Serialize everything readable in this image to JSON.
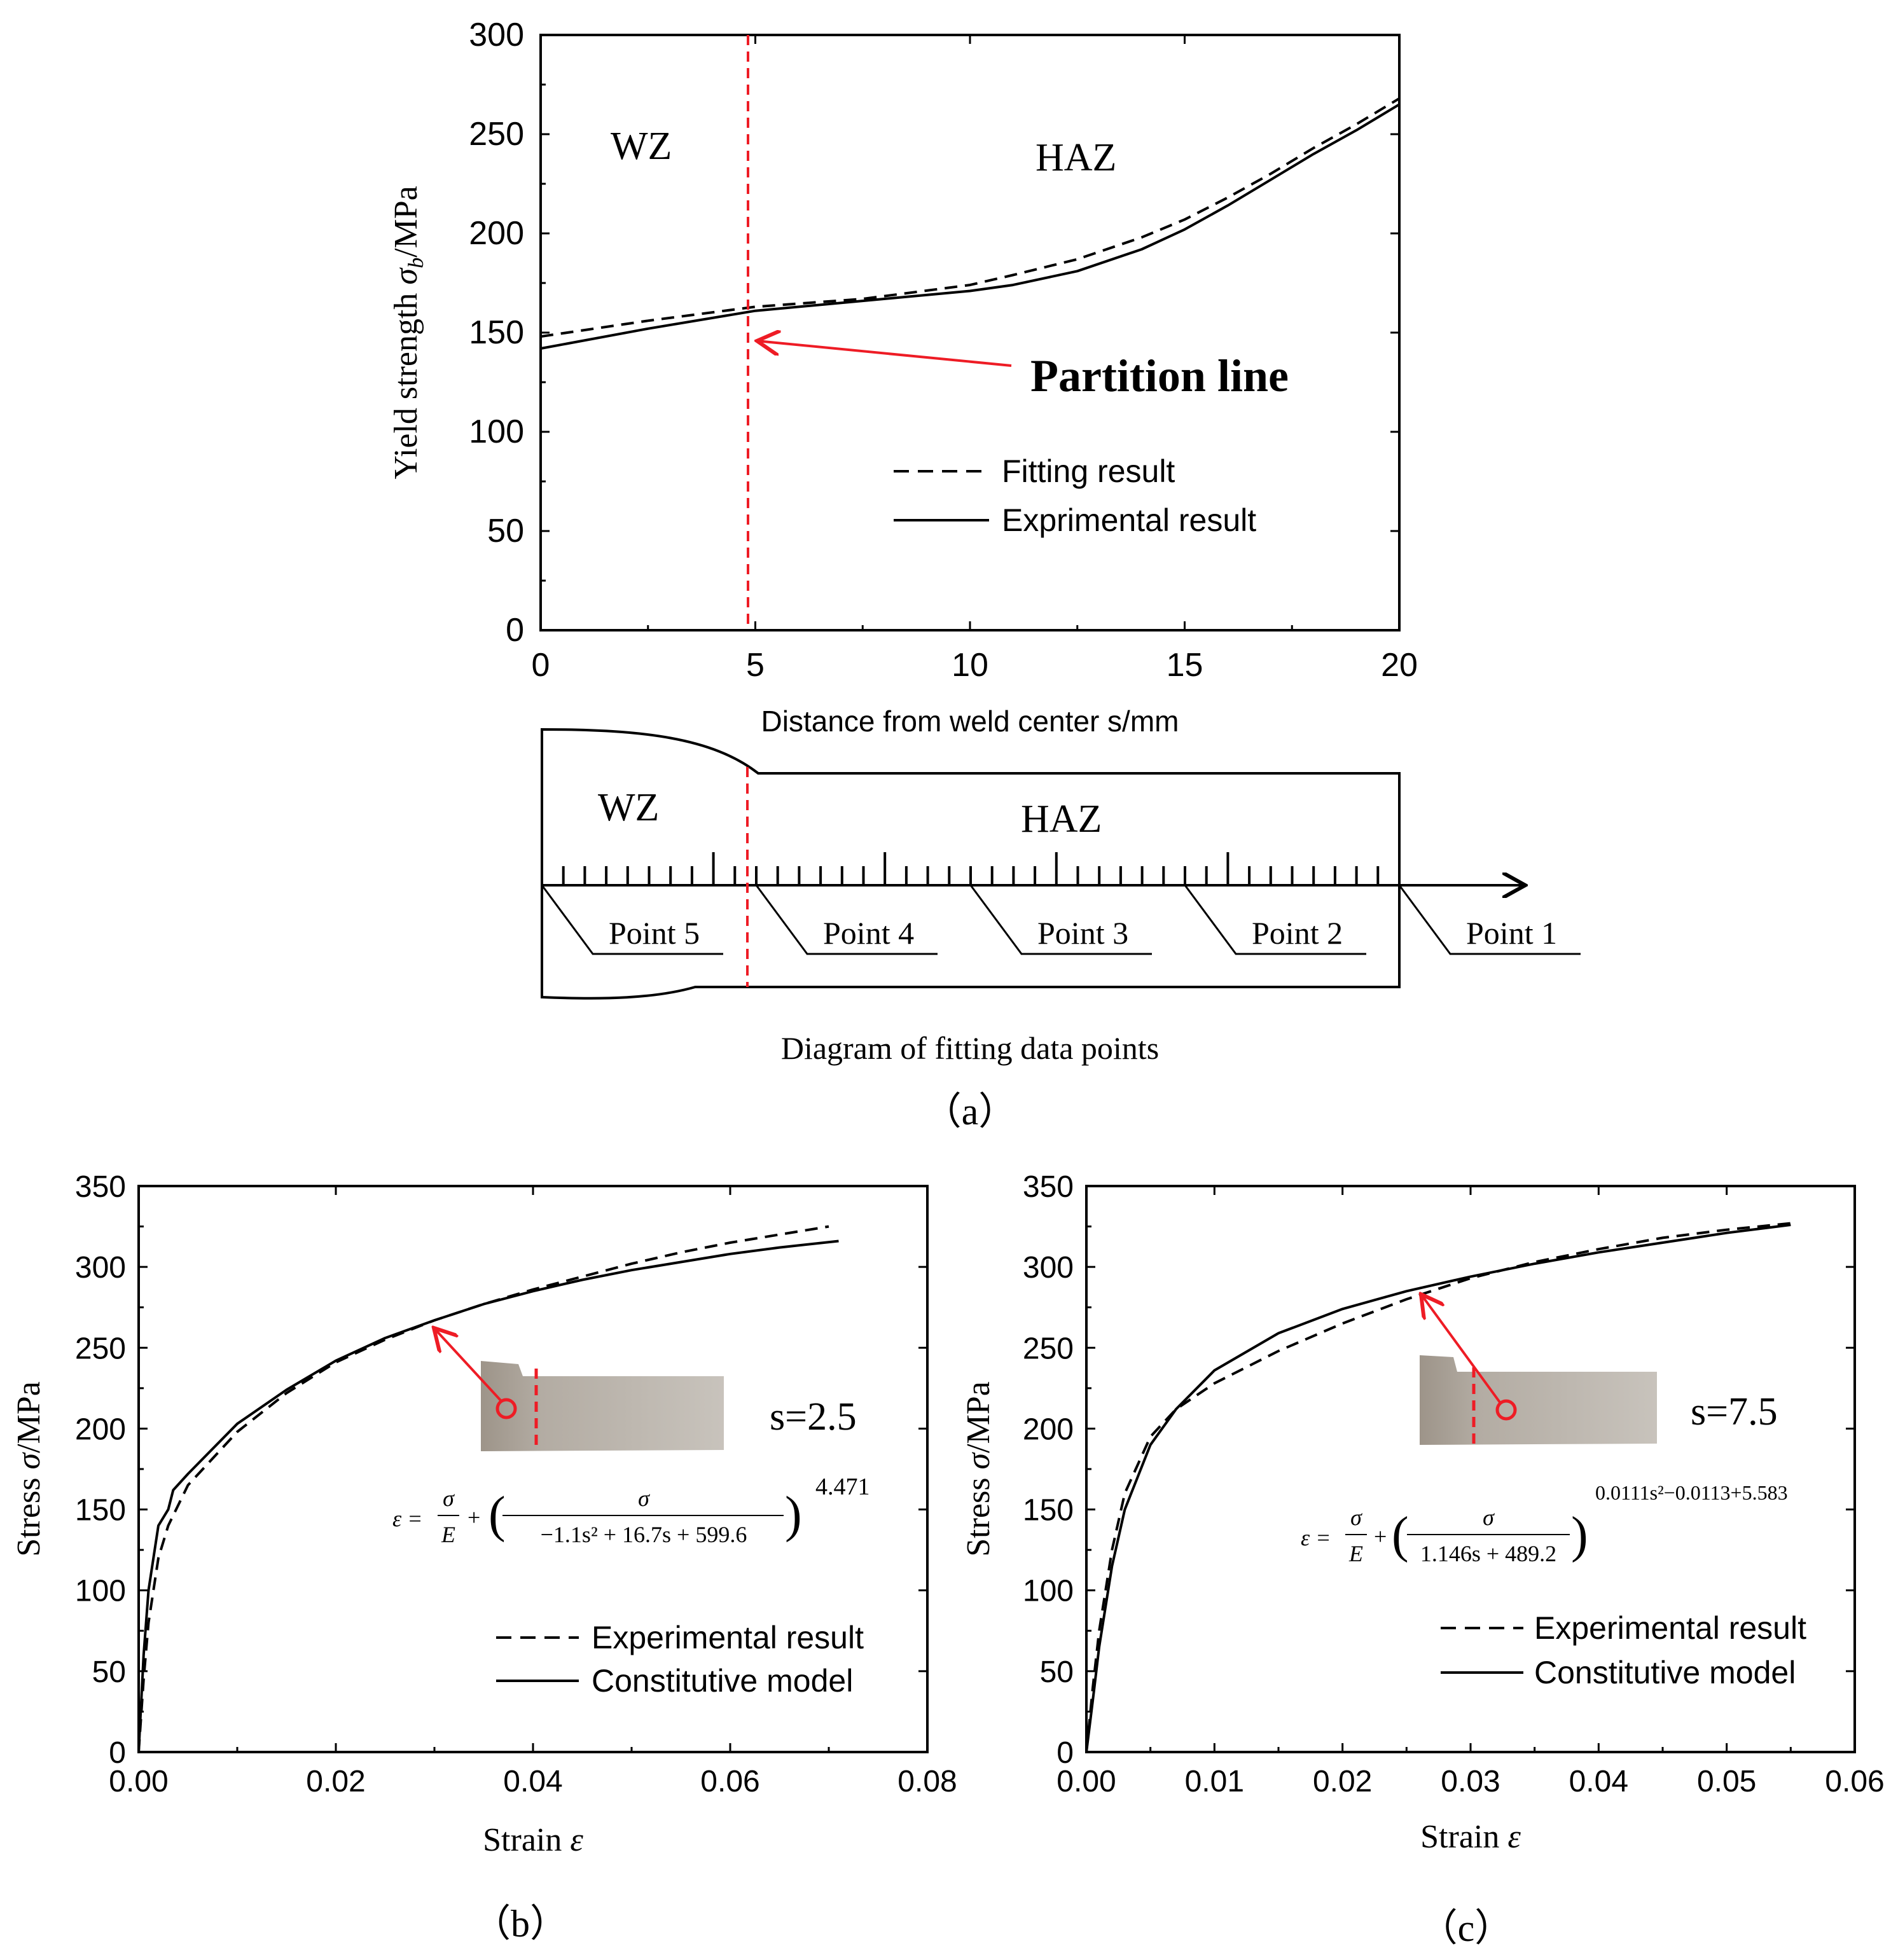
{
  "colors": {
    "axis": "#000000",
    "partition": "#ee1c25",
    "background": "#ffffff",
    "specimen": "#b3aca3"
  },
  "panel_labels": {
    "a": "（a）",
    "b": "（b）",
    "c": "（c）"
  },
  "diagram": {
    "title": "Diagram of fitting data points",
    "wz": "WZ",
    "haz": "HAZ",
    "points": [
      "Point 5",
      "Point 4",
      "Point 3",
      "Point 2",
      "Point 1"
    ]
  },
  "chart_data": [
    {
      "id": "a",
      "type": "line",
      "xlabel": "Distance from weld center s/mm",
      "ylabel_main": "Yield strength ",
      "ylabel_sym": "σ",
      "ylabel_sub": "b",
      "ylabel_unit": "/MPa",
      "xlim": [
        0,
        20
      ],
      "ylim": [
        0,
        300
      ],
      "xticks": [
        0,
        5,
        10,
        15,
        20
      ],
      "yticks": [
        0,
        50,
        100,
        150,
        200,
        250,
        300
      ],
      "region_labels": {
        "left": "WZ",
        "right": "HAZ"
      },
      "partition": {
        "x": 4.8,
        "label": "Partition line"
      },
      "series": [
        {
          "name": "Fitting result",
          "style": "dashed",
          "x": [
            0,
            2.5,
            5,
            7.5,
            10,
            11,
            12.5,
            14,
            15,
            16,
            17,
            18,
            19,
            20
          ],
          "y": [
            148,
            156,
            163,
            167,
            174,
            179,
            187,
            198,
            207,
            218,
            230,
            243,
            255,
            268
          ]
        },
        {
          "name": "Exprimental result",
          "style": "solid",
          "x": [
            0,
            2.5,
            5,
            7.5,
            10,
            11,
            12.5,
            14,
            15,
            16,
            17,
            18,
            19,
            20
          ],
          "y": [
            142,
            152,
            161,
            166,
            171,
            174,
            181,
            192,
            202,
            214,
            227,
            240,
            252,
            265
          ]
        }
      ]
    },
    {
      "id": "b",
      "type": "line",
      "xlabel_main": "Strain ",
      "xlabel_sym": "ε",
      "ylabel_main": "Stress  ",
      "ylabel_sym": "σ",
      "ylabel_unit": "/MPa",
      "xlim": [
        0,
        0.08
      ],
      "ylim": [
        0,
        350
      ],
      "xticks": [
        "0.00",
        "0.02",
        "0.04",
        "0.06",
        "0.08"
      ],
      "yticks": [
        0,
        50,
        100,
        150,
        200,
        250,
        300,
        350
      ],
      "annotation": "s=2.5",
      "formula": {
        "lhs": "ε =",
        "t1n": "σ",
        "t1d": "E",
        "plus": "+",
        "t2n": "σ",
        "t2d": "−1.1s² + 16.7s + 599.6",
        "exp": "4.471"
      },
      "series": [
        {
          "name": "Experimental result",
          "style": "dashed",
          "x": [
            0,
            0.0005,
            0.001,
            0.002,
            0.003,
            0.005,
            0.01,
            0.015,
            0.02,
            0.025,
            0.03,
            0.035,
            0.04,
            0.045,
            0.05,
            0.055,
            0.06,
            0.065,
            0.07
          ],
          "y": [
            0,
            45,
            80,
            120,
            140,
            165,
            198,
            222,
            241,
            255,
            267,
            277,
            286,
            294,
            302,
            309,
            315,
            320,
            325
          ]
        },
        {
          "name": "Constitutive model",
          "style": "solid",
          "x": [
            0,
            0.0005,
            0.001,
            0.002,
            0.003,
            0.0035,
            0.005,
            0.01,
            0.015,
            0.02,
            0.025,
            0.03,
            0.035,
            0.04,
            0.045,
            0.05,
            0.055,
            0.06,
            0.065,
            0.071
          ],
          "y": [
            0,
            60,
            100,
            140,
            150,
            162,
            172,
            203,
            224,
            242,
            256,
            267,
            277,
            285,
            292,
            298,
            303,
            308,
            312,
            316
          ]
        }
      ]
    },
    {
      "id": "c",
      "type": "line",
      "xlabel_main": "Strain ",
      "xlabel_sym": "ε",
      "ylabel_main": "Stress  ",
      "ylabel_sym": "σ",
      "ylabel_unit": "/MPa",
      "xlim": [
        0,
        0.06
      ],
      "ylim": [
        0,
        350
      ],
      "xticks": [
        "0.00",
        "0.01",
        "0.02",
        "0.03",
        "0.04",
        "0.05",
        "0.06"
      ],
      "yticks": [
        0,
        50,
        100,
        150,
        200,
        250,
        300,
        350
      ],
      "annotation": "s=7.5",
      "formula": {
        "lhs": "ε =",
        "t1n": "σ",
        "t1d": "E",
        "plus": "+",
        "t2n": "σ",
        "t2d": "1.146s + 489.2",
        "exp": "0.0111s²−0.0113+5.583"
      },
      "series": [
        {
          "name": "Experimental result",
          "style": "dashed",
          "x": [
            0,
            0.0005,
            0.001,
            0.002,
            0.003,
            0.005,
            0.007,
            0.01,
            0.015,
            0.02,
            0.025,
            0.03,
            0.035,
            0.04,
            0.045,
            0.05,
            0.055
          ],
          "y": [
            0,
            40,
            75,
            125,
            160,
            195,
            212,
            228,
            248,
            265,
            280,
            293,
            303,
            311,
            318,
            323,
            327
          ]
        },
        {
          "name": "Constitutive model",
          "style": "solid",
          "x": [
            0,
            0.0005,
            0.001,
            0.002,
            0.003,
            0.005,
            0.007,
            0.01,
            0.015,
            0.02,
            0.025,
            0.03,
            0.035,
            0.04,
            0.045,
            0.05,
            0.055
          ],
          "y": [
            0,
            32,
            65,
            115,
            150,
            190,
            212,
            236,
            259,
            274,
            285,
            294,
            302,
            309,
            315,
            321,
            326
          ]
        }
      ]
    }
  ]
}
